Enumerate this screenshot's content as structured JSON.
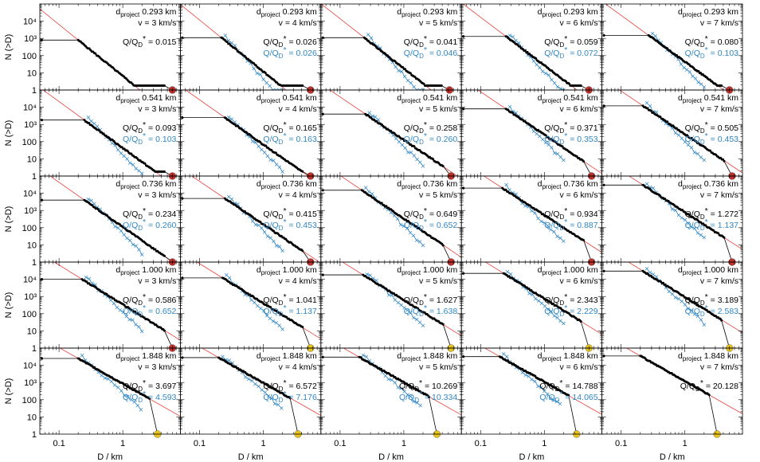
{
  "chart_data": {
    "type": "line",
    "layout": "grid",
    "rows": 5,
    "cols": 5,
    "xlabel": "D / km",
    "ylabel": "N (>D)",
    "xscale": "log",
    "yscale": "log",
    "xlim": [
      0.05,
      8
    ],
    "ylim": [
      1,
      100000
    ],
    "x_ticks": [
      "0.1",
      "1"
    ],
    "y_ticks": [
      "1",
      "10",
      "100",
      "10³",
      "10⁴"
    ],
    "x_tick_values": [
      0.1,
      1
    ],
    "y_tick_values": [
      1,
      10,
      100,
      1000,
      10000
    ],
    "label_prefixes": {
      "d": "d",
      "d_sub": "project",
      "q": "Q/Q",
      "q_sub": "D",
      "q_sup": "*"
    },
    "colors": {
      "model": "#000000",
      "comparison": "#2f86c4",
      "fit": "#e8403c",
      "largest_red": "#c0302a",
      "largest_yellow": "#e8c31c"
    },
    "panels": [
      {
        "d_project": "0.293 km",
        "v": "v = 3 km/s",
        "q_black": "= 0.015",
        "q_blue": null,
        "top": 800,
        "ankle": 0.2,
        "slope": 3.0,
        "end_d": 6.0,
        "blue": false,
        "largest": "red"
      },
      {
        "d_project": "0.293 km",
        "v": "v = 4 km/s",
        "q_black": "= 0.026",
        "q_blue": "= 0.026",
        "top": 1100,
        "ankle": 0.22,
        "slope": 3.0,
        "end_d": 5.5,
        "blue": true,
        "largest": "red"
      },
      {
        "d_project": "0.293 km",
        "v": "v = 5 km/s",
        "q_black": "= 0.041",
        "q_blue": "= 0.046",
        "top": 1100,
        "ankle": 0.24,
        "slope": 2.9,
        "end_d": 5.2,
        "blue": true,
        "largest": "red"
      },
      {
        "d_project": "0.293 km",
        "v": "v = 6 km/s",
        "q_black": "= 0.059",
        "q_blue": "= 0.072",
        "top": 1300,
        "ankle": 0.25,
        "slope": 2.8,
        "end_d": 5.0,
        "blue": true,
        "largest": "red"
      },
      {
        "d_project": "0.293 km",
        "v": "v = 7 km/s",
        "q_black": "= 0.080",
        "q_blue": "= 0.103",
        "top": 1500,
        "ankle": 0.27,
        "slope": 2.7,
        "end_d": 5.0,
        "blue": true,
        "largest": "red"
      },
      {
        "d_project": "0.541 km",
        "v": "v = 3 km/s",
        "q_black": "= 0.093",
        "q_blue": "= 0.103",
        "top": 1800,
        "ankle": 0.25,
        "slope": 2.7,
        "end_d": 6.0,
        "blue": true,
        "largest": "red"
      },
      {
        "d_project": "0.541 km",
        "v": "v = 4 km/s",
        "q_black": "= 0.165",
        "q_blue": "= 0.163",
        "top": 2500,
        "ankle": 0.25,
        "slope": 2.6,
        "end_d": 5.5,
        "blue": true,
        "largest": "red"
      },
      {
        "d_project": "0.541 km",
        "v": "v = 5 km/s",
        "q_black": "= 0.258",
        "q_blue": "= 0.260",
        "top": 4000,
        "ankle": 0.25,
        "slope": 2.5,
        "end_d": 5.5,
        "blue": true,
        "largest": "red"
      },
      {
        "d_project": "0.541 km",
        "v": "v = 6 km/s",
        "q_black": "= 0.371",
        "q_blue": "= 0.353",
        "top": 8000,
        "ankle": 0.25,
        "slope": 2.5,
        "end_d": 5.5,
        "blue": true,
        "largest": "red"
      },
      {
        "d_project": "0.541 km",
        "v": "v = 7 km/s",
        "q_black": "= 0.505",
        "q_blue": "= 0.453",
        "top": 12000,
        "ankle": 0.22,
        "slope": 2.5,
        "end_d": 5.5,
        "blue": true,
        "largest": "red"
      },
      {
        "d_project": "0.736 km",
        "v": "v = 3 km/s",
        "q_black": "= 0.234",
        "q_blue": "= 0.260",
        "top": 4000,
        "ankle": 0.25,
        "slope": 2.6,
        "end_d": 6.0,
        "blue": true,
        "largest": "red"
      },
      {
        "d_project": "0.736 km",
        "v": "v = 4 km/s",
        "q_black": "= 0.415",
        "q_blue": "= 0.453",
        "top": 5000,
        "ankle": 0.25,
        "slope": 2.5,
        "end_d": 5.5,
        "blue": true,
        "largest": "red"
      },
      {
        "d_project": "0.736 km",
        "v": "v = 5 km/s",
        "q_black": "= 0.649",
        "q_blue": "= 0.652",
        "top": 15000,
        "ankle": 0.22,
        "slope": 2.5,
        "end_d": 5.5,
        "blue": true,
        "largest": "red"
      },
      {
        "d_project": "0.736 km",
        "v": "v = 6 km/s",
        "q_black": "= 0.934",
        "q_blue": "= 0.887",
        "top": 20000,
        "ankle": 0.22,
        "slope": 2.4,
        "end_d": 5.5,
        "blue": true,
        "largest": "red"
      },
      {
        "d_project": "0.736 km",
        "v": "v = 7 km/s",
        "q_black": "= 1.272",
        "q_blue": "= 1.137",
        "top": 30000,
        "ankle": 0.22,
        "slope": 2.4,
        "end_d": 5.5,
        "blue": true,
        "largest": "red"
      },
      {
        "d_project": "1.000 km",
        "v": "v = 3 km/s",
        "q_black": "= 0.586",
        "q_blue": "= 0.652",
        "top": 10000,
        "ankle": 0.23,
        "slope": 2.3,
        "end_d": 6.0,
        "blue": true,
        "largest": "red"
      },
      {
        "d_project": "1.000 km",
        "v": "v = 4 km/s",
        "q_black": "= 1.041",
        "q_blue": "= 1.137",
        "top": 12000,
        "ankle": 0.23,
        "slope": 2.3,
        "end_d": 5.5,
        "blue": true,
        "largest": "yellow"
      },
      {
        "d_project": "1.000 km",
        "v": "v = 5 km/s",
        "q_black": "= 1.627",
        "q_blue": "= 1.638",
        "top": 18000,
        "ankle": 0.23,
        "slope": 2.3,
        "end_d": 5.5,
        "blue": true,
        "largest": "yellow"
      },
      {
        "d_project": "1.000 km",
        "v": "v = 6 km/s",
        "q_black": "= 2.343",
        "q_blue": "= 2.229",
        "top": 22000,
        "ankle": 0.23,
        "slope": 2.3,
        "end_d": 5.0,
        "blue": true,
        "largest": "yellow"
      },
      {
        "d_project": "1.000 km",
        "v": "v = 7 km/s",
        "q_black": "= 3.189",
        "q_blue": "= 2.583",
        "top": 30000,
        "ankle": 0.22,
        "slope": 2.3,
        "end_d": 5.0,
        "blue": true,
        "largest": "yellow"
      },
      {
        "d_project": "1.848 km",
        "v": "v = 3 km/s",
        "q_black": "= 3.697",
        "q_blue": "= 4.593",
        "top": 25000,
        "ankle": 0.2,
        "slope": 2.1,
        "end_d": 3.5,
        "blue": true,
        "largest": "yellow"
      },
      {
        "d_project": "1.848 km",
        "v": "v = 4 km/s",
        "q_black": "= 6.572",
        "q_blue": "= 7.176",
        "top": 28000,
        "ankle": 0.2,
        "slope": 2.1,
        "end_d": 3.5,
        "blue": true,
        "largest": "yellow"
      },
      {
        "d_project": "1.848 km",
        "v": "v = 5 km/s",
        "q_black": "= 10.269",
        "q_blue": "= 10.334",
        "top": 30000,
        "ankle": 0.2,
        "slope": 2.1,
        "end_d": 3.3,
        "blue": true,
        "largest": "yellow"
      },
      {
        "d_project": "1.848 km",
        "v": "v = 6 km/s",
        "q_black": "= 14.788",
        "q_blue": "= 14.065",
        "top": 32000,
        "ankle": 0.2,
        "slope": 2.1,
        "end_d": 3.2,
        "blue": true,
        "largest": "yellow"
      },
      {
        "d_project": "1.848 km",
        "v": "v = 7 km/s",
        "q_black": "= 20.128",
        "q_blue": null,
        "top": 35000,
        "ankle": 0.2,
        "slope": 2.1,
        "end_d": 3.2,
        "blue": false,
        "largest": "yellow"
      }
    ]
  }
}
